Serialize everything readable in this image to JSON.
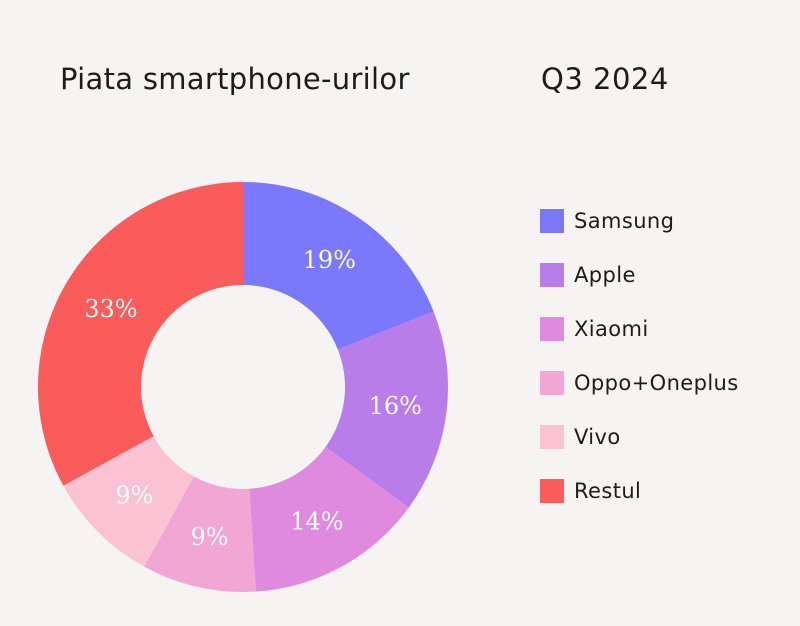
{
  "header": {
    "title": "Piata smartphone-urilor",
    "period": "Q3 2024"
  },
  "chart_data": {
    "type": "pie",
    "categories": [
      "Samsung",
      "Apple",
      "Xiaomi",
      "Oppo+Oneplus",
      "Vivo",
      "Restul"
    ],
    "values": [
      19,
      16,
      14,
      9,
      9,
      33
    ],
    "labels": [
      "19%",
      "16%",
      "14%",
      "9%",
      "9%",
      "33%"
    ],
    "colors": [
      "#7b78fb",
      "#b97de9",
      "#df8ade",
      "#f2a6d3",
      "#fbc2d3",
      "#fa5b5b"
    ],
    "legend_placement": "right"
  }
}
